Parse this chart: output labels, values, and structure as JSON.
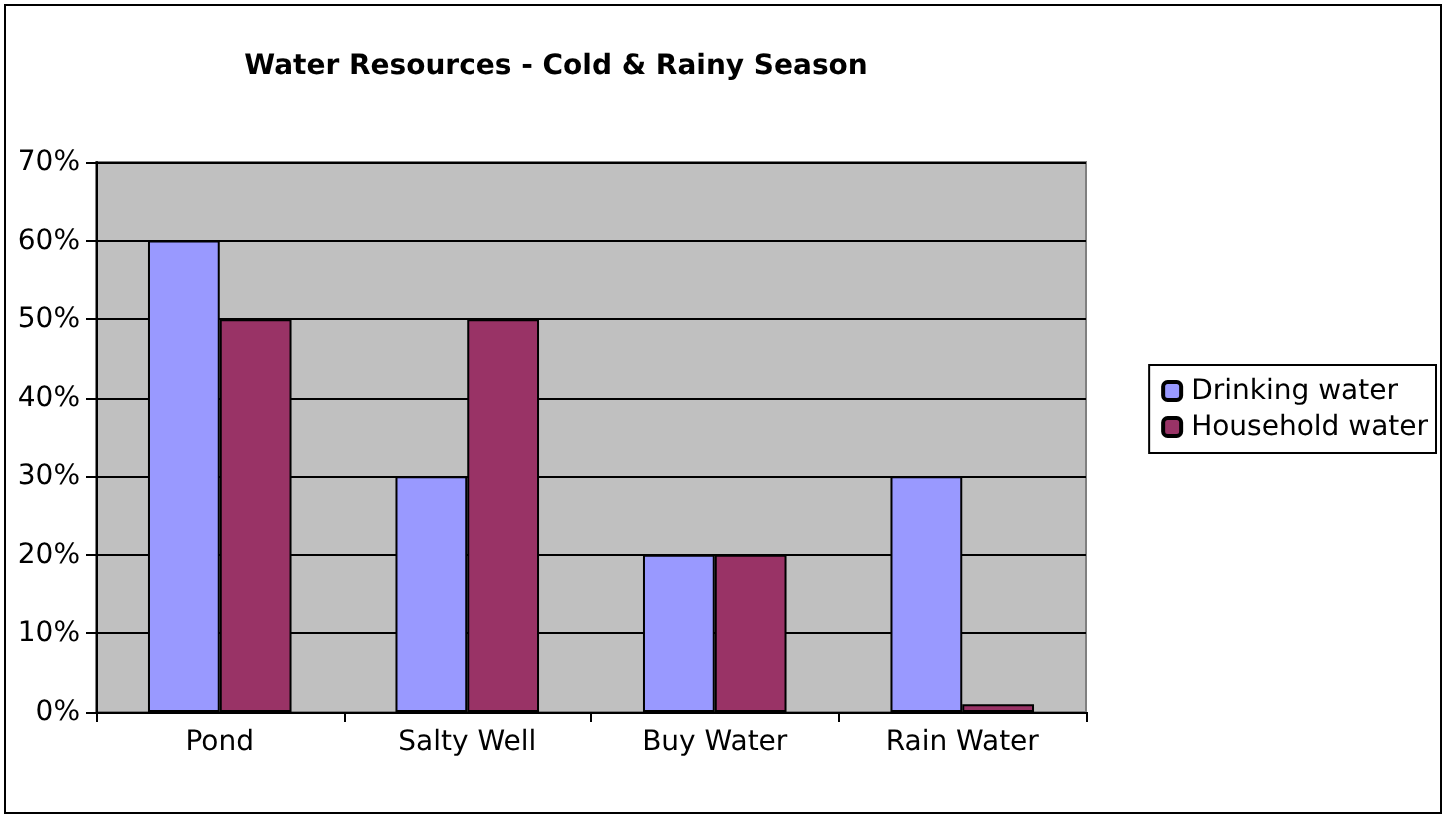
{
  "chart_data": {
    "type": "bar",
    "title": "Water Resources - Cold & Rainy Season",
    "categories": [
      "Pond",
      "Salty Well",
      "Buy Water",
      "Rain Water"
    ],
    "series": [
      {
        "name": "Drinking water",
        "color": "#9999ff",
        "values": [
          60,
          30,
          20,
          30
        ]
      },
      {
        "name": "Household water",
        "color": "#993366",
        "values": [
          50,
          50,
          20,
          1
        ]
      }
    ],
    "ylim": [
      0,
      70
    ],
    "yticks": [
      {
        "value": 0,
        "label": "0%"
      },
      {
        "value": 10,
        "label": "10%"
      },
      {
        "value": 20,
        "label": "20%"
      },
      {
        "value": 30,
        "label": "30%"
      },
      {
        "value": 40,
        "label": "40%"
      },
      {
        "value": 50,
        "label": "50%"
      },
      {
        "value": 60,
        "label": "60%"
      },
      {
        "value": 70,
        "label": "70%"
      }
    ],
    "grid": "y",
    "legend": "right"
  }
}
